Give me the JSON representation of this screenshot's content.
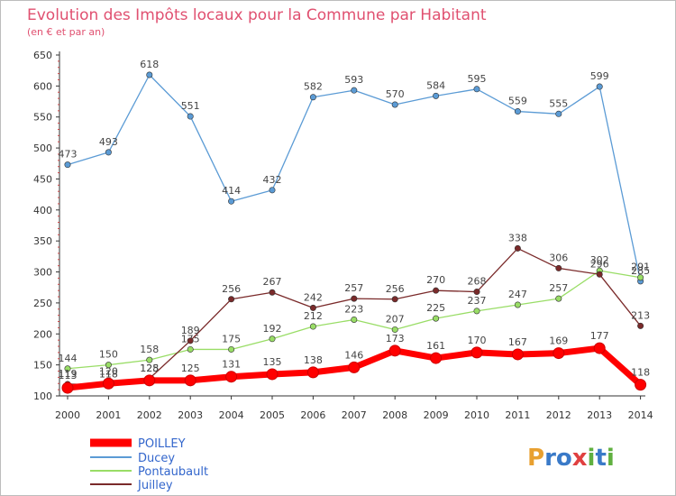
{
  "chart_data": {
    "type": "line",
    "title": "Evolution des Impôts locaux pour la Commune par Habitant",
    "subtitle": "(en € et par an)",
    "x": [
      "2000",
      "2001",
      "2002",
      "2003",
      "2004",
      "2005",
      "2006",
      "2007",
      "2008",
      "2009",
      "2010",
      "2011",
      "2012",
      "2013",
      "2014"
    ],
    "yticks": [
      100,
      150,
      200,
      250,
      300,
      350,
      400,
      450,
      500,
      550,
      600,
      650
    ],
    "ylim": [
      100,
      650
    ],
    "grid": false,
    "legend_position": "bottom-left",
    "series": [
      {
        "name": "POILLEY",
        "color": "#ff0000",
        "values": [
          113,
          120,
          125,
          125,
          131,
          135,
          138,
          146,
          173,
          161,
          170,
          167,
          169,
          177,
          118
        ],
        "labels": [
          "113",
          "120",
          "125",
          "125",
          "131",
          "135",
          "138",
          "146",
          "173",
          "161",
          "170",
          "167",
          "169",
          "177",
          "118"
        ]
      },
      {
        "name": "Ducey",
        "color": "#5b9bd5",
        "values": [
          473,
          493,
          618,
          551,
          414,
          432,
          582,
          593,
          570,
          584,
          595,
          559,
          555,
          599,
          285
        ],
        "labels": [
          "473",
          "493",
          "618",
          "551",
          "414",
          "432",
          "582",
          "593",
          "570",
          "584",
          "595",
          "559",
          "555",
          "599",
          "285"
        ]
      },
      {
        "name": "Pontaubault",
        "color": "#99dd66",
        "values": [
          144,
          150,
          158,
          175,
          175,
          192,
          212,
          223,
          207,
          225,
          237,
          247,
          257,
          302,
          291
        ],
        "labels": [
          "144",
          "150",
          "158",
          "175",
          "175",
          "192",
          "212",
          "223",
          "207",
          "225",
          "237",
          "247",
          "257",
          "302",
          "291"
        ]
      },
      {
        "name": "Juilley",
        "color": "#7a2a2a",
        "values": [
          119,
          118,
          128,
          189,
          256,
          267,
          242,
          257,
          256,
          270,
          268,
          338,
          306,
          296,
          213
        ],
        "labels": [
          "119",
          "118",
          "128",
          "189",
          "256",
          "267",
          "242",
          "257",
          "256",
          "270",
          "268",
          "338",
          "306",
          "296",
          "213"
        ]
      }
    ]
  },
  "brand": {
    "text": "Proxiti"
  }
}
